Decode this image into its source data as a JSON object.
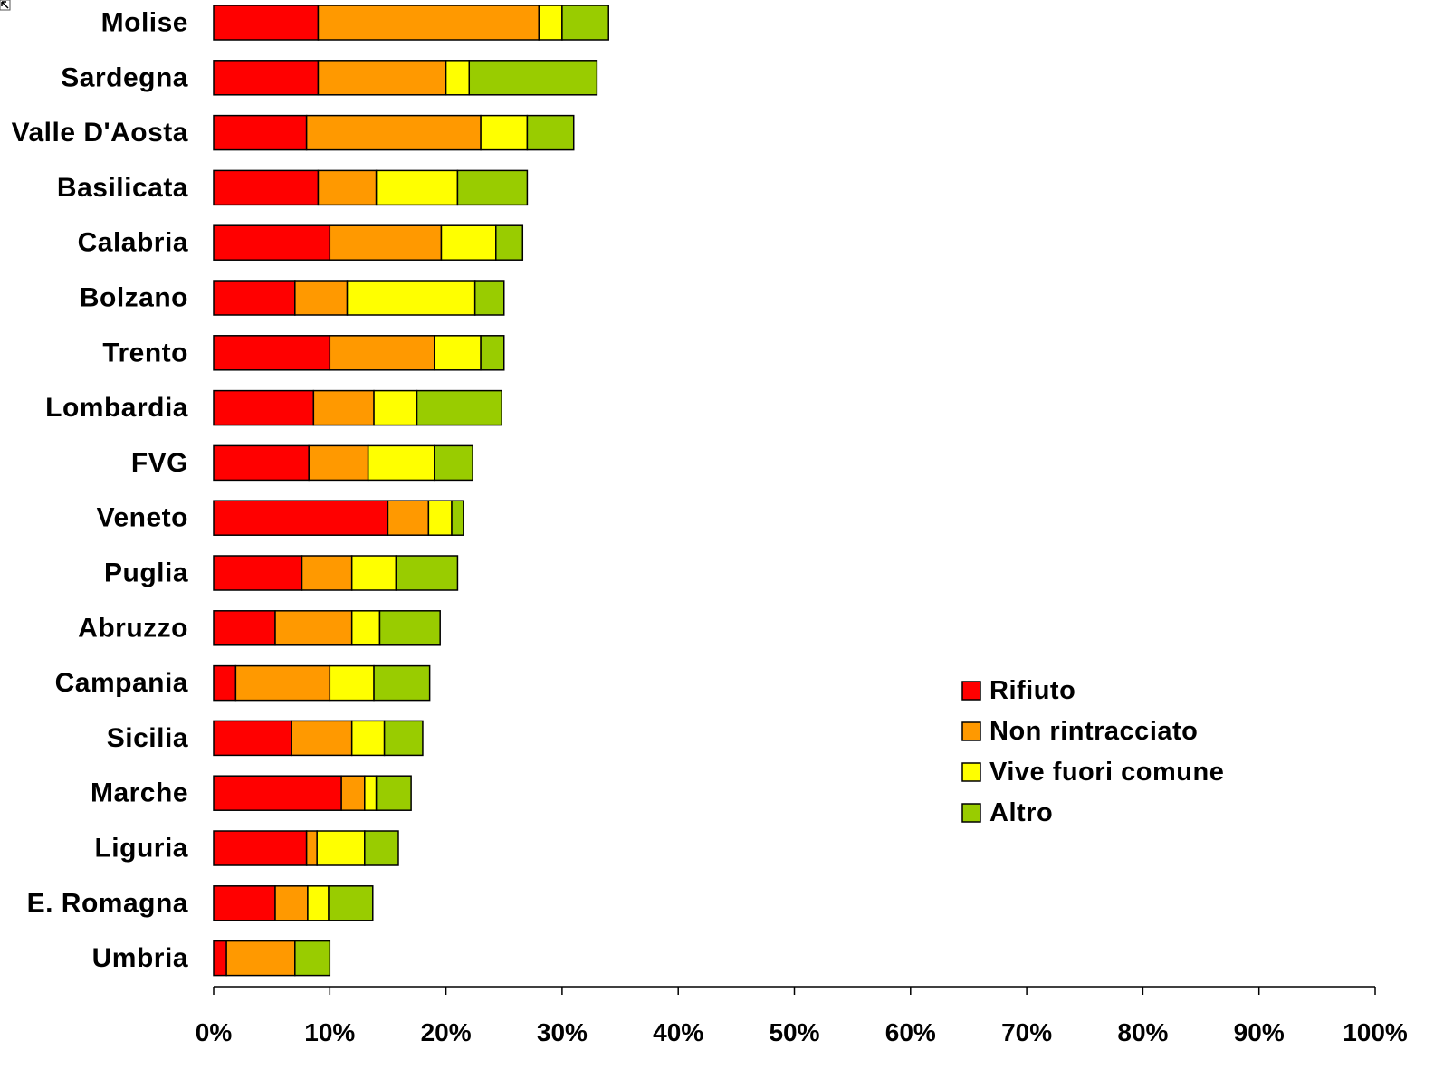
{
  "chart_data": {
    "type": "bar",
    "orientation": "horizontal",
    "stacked": true,
    "title": "",
    "xlabel": "",
    "ylabel": "",
    "xlim": [
      0,
      100
    ],
    "x_ticks": [
      "0%",
      "10%",
      "20%",
      "30%",
      "40%",
      "50%",
      "60%",
      "70%",
      "80%",
      "90%",
      "100%"
    ],
    "grid": false,
    "legend_position": "right",
    "categories": [
      "Molise",
      "Sardegna",
      "Valle D'Aosta",
      "Basilicata",
      "Calabria",
      "Bolzano",
      "Trento",
      "Lombardia",
      "FVG",
      "Veneto",
      "Puglia",
      "Abruzzo",
      "Campania",
      "Sicilia",
      "Marche",
      "Liguria",
      "E. Romagna",
      "Umbria"
    ],
    "series": [
      {
        "name": "Rifiuto",
        "color": "#ff0000",
        "values": [
          9,
          9,
          8,
          9,
          10,
          7,
          10,
          8.6,
          8.2,
          15,
          7.6,
          5.3,
          1.9,
          6.7,
          11,
          8,
          5.3,
          1.1
        ]
      },
      {
        "name": "Non rintracciato",
        "color": "#ff9900",
        "values": [
          19,
          11,
          15,
          5,
          9.6,
          4.5,
          9,
          5.2,
          5.1,
          3.5,
          4.3,
          6.6,
          8.1,
          5.2,
          2,
          0.9,
          2.8,
          5.9
        ]
      },
      {
        "name": "Vive fuori comune",
        "color": "#ffff00",
        "values": [
          2,
          2,
          4,
          7,
          4.7,
          11,
          4,
          3.7,
          5.7,
          2,
          3.8,
          2.4,
          3.8,
          2.8,
          1,
          4.1,
          1.8,
          0
        ]
      },
      {
        "name": "Altro",
        "color": "#99cc00",
        "values": [
          4,
          11,
          4,
          6,
          2.3,
          2.5,
          2,
          7.3,
          3.3,
          1,
          5.3,
          5.2,
          4.8,
          3.3,
          3,
          2.9,
          3.8,
          3
        ]
      }
    ]
  }
}
